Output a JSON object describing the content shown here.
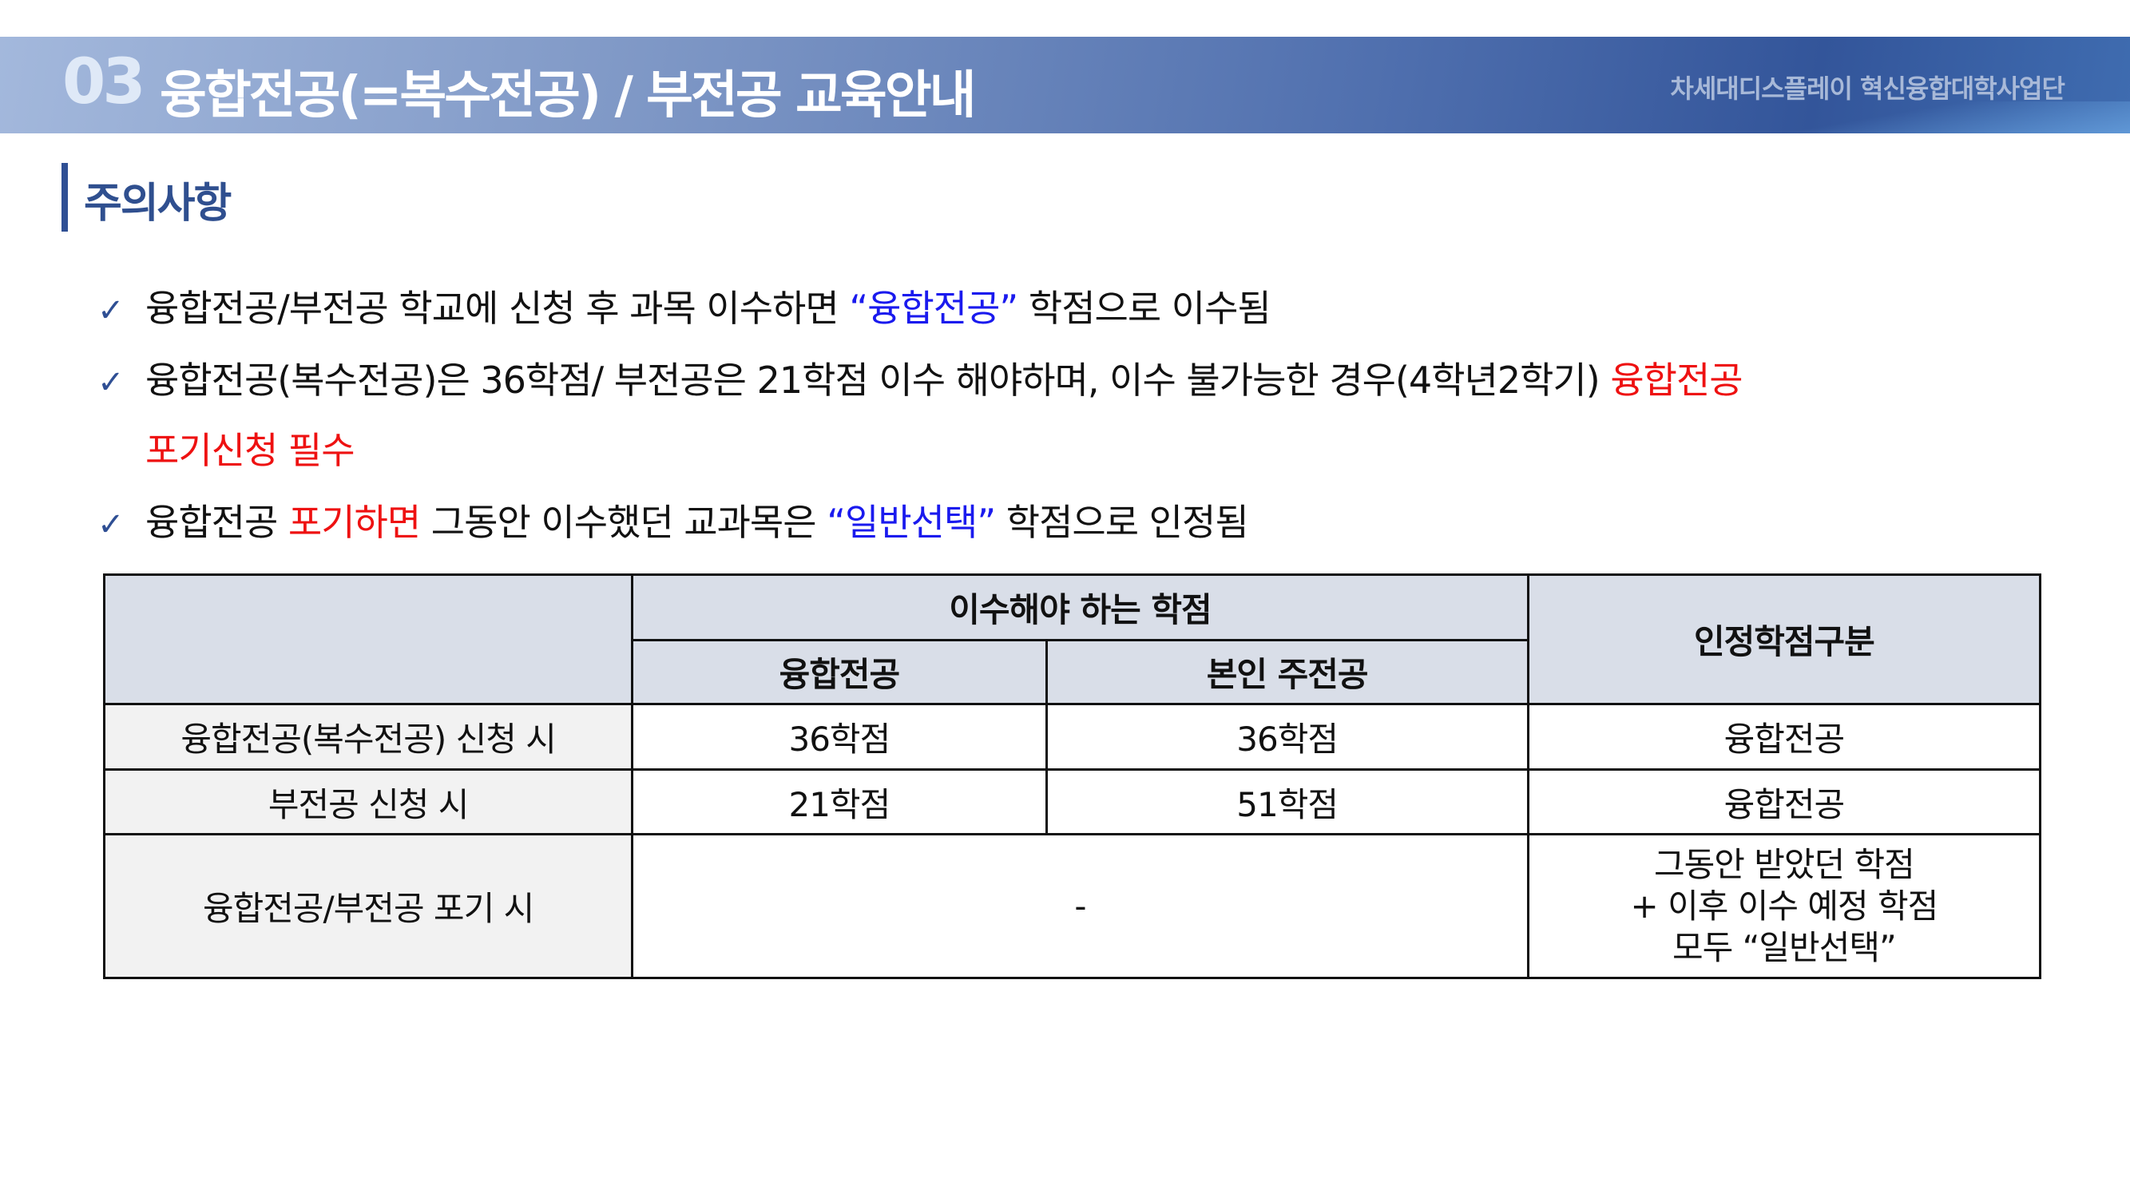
{
  "header": {
    "number": "03",
    "title": "융합전공(=복수전공) / 부전공 교육안내",
    "organization": "차세대디스플레이 혁신융합대학사업단"
  },
  "section": {
    "title": "주의사항"
  },
  "bullets": [
    {
      "icon": "checkmark-icon",
      "parts": [
        "융합전공/부전공 학교에 신청 후 과목 이수하면 ",
        "“융합전공”",
        " 학점으로 이수됨"
      ]
    },
    {
      "icon": "checkmark-icon",
      "parts": [
        "융합전공(복수전공)은 36학점/ 부전공은 21학점 이수 해야하며, 이수 불가능한 경우(4학년2학기) ",
        "융합전공",
        "포기신청 필수"
      ]
    },
    {
      "icon": "checkmark-icon",
      "parts": [
        "융합전공 ",
        "포기하면",
        " 그동안 이수했던 교과목은 ",
        "“일반선택”",
        " 학점으로 인정됨"
      ]
    }
  ],
  "table": {
    "header_group": "이수해야 하는 학점",
    "col_convergence": "융합전공",
    "col_major": "본인 주전공",
    "col_recognition": "인정학점구분",
    "rows": [
      {
        "label": "융합전공(복수전공) 신청 시",
        "convergence": "36학점",
        "major": "36학점",
        "recognition": "융합전공"
      },
      {
        "label": "부전공 신청 시",
        "convergence": "21학점",
        "major": "51학점",
        "recognition": "융합전공"
      }
    ],
    "last_row": {
      "label": "융합전공/부전공 포기 시",
      "merged": "-",
      "recognition_lines": [
        "그동안 받았던 학점",
        "+ 이후 이수 예정 학점",
        "모두 “일반선택”"
      ]
    }
  },
  "colors": {
    "header_blue": "#33559a",
    "accent_red": "#ee1111",
    "accent_blue": "#1a1aee",
    "table_header": "#d9dee8"
  }
}
